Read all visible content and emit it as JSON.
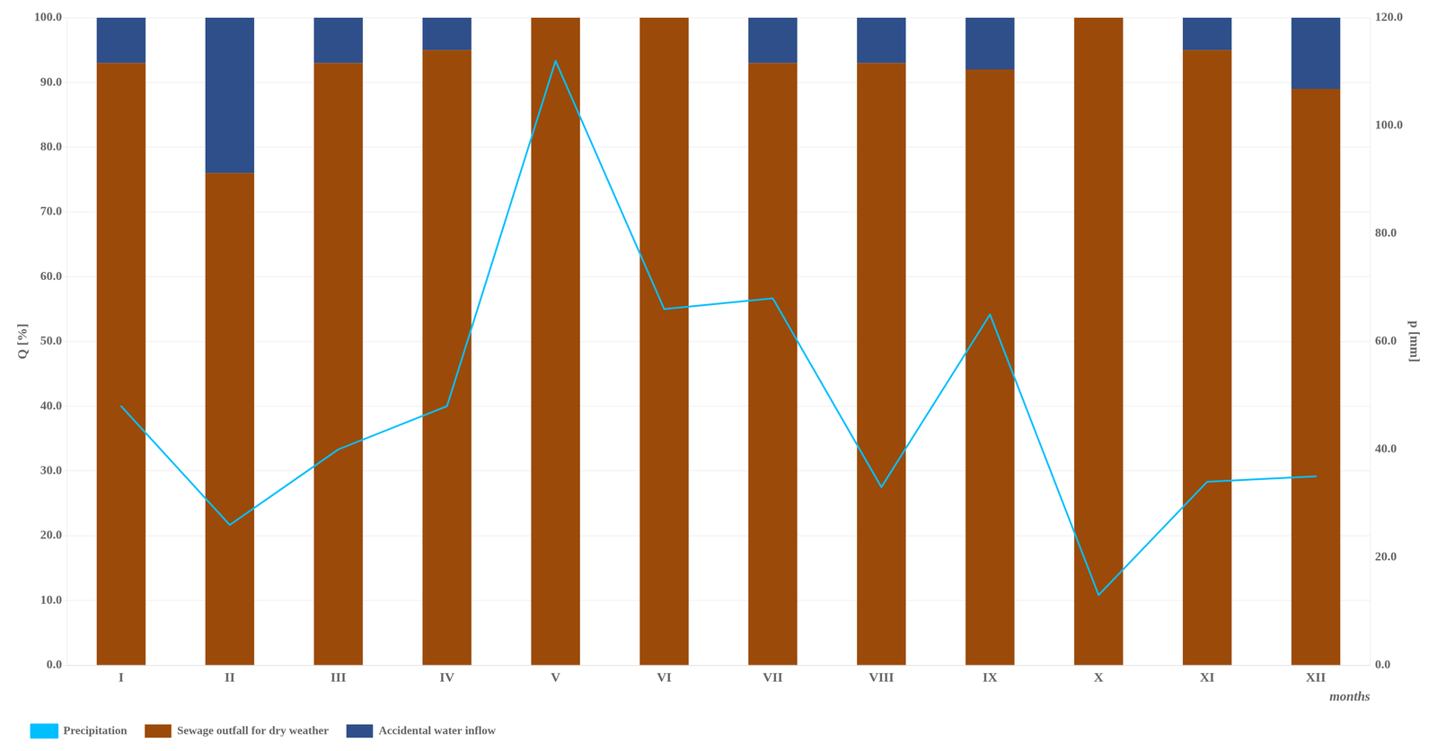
{
  "chart_data": {
    "type": "bar",
    "categories": [
      "I",
      "II",
      "III",
      "IV",
      "V",
      "VI",
      "VII",
      "VIII",
      "IX",
      "X",
      "XI",
      "XII"
    ],
    "series": [
      {
        "name": "Sewage outfall for dry weather",
        "type": "bar",
        "color": "#9B4A0A",
        "values": [
          93,
          76,
          93,
          95,
          100,
          100,
          93,
          93,
          92,
          100,
          95,
          89
        ]
      },
      {
        "name": "Accidental water inflow",
        "type": "bar",
        "color": "#2E4F8A",
        "values": [
          7,
          24,
          7,
          5,
          0,
          0,
          7,
          7,
          8,
          0,
          5,
          11
        ]
      },
      {
        "name": "Precipitation",
        "type": "line",
        "color": "#00BFFF",
        "axis": "y2",
        "values": [
          48,
          26,
          40,
          48,
          112,
          66,
          68,
          33,
          65,
          13,
          34,
          35
        ]
      }
    ],
    "stacked": true,
    "xlabel": "months",
    "ylabel": "Q [%]",
    "y2label": "p [mm]",
    "ylim": [
      0,
      100
    ],
    "yticks": [
      {
        "value": 0,
        "label": "0.0"
      },
      {
        "value": 10,
        "label": "10.0"
      },
      {
        "value": 20,
        "label": "20.0"
      },
      {
        "value": 30,
        "label": "30.0"
      },
      {
        "value": 40,
        "label": "40.0"
      },
      {
        "value": 50,
        "label": "50.0"
      },
      {
        "value": 60,
        "label": "60.0"
      },
      {
        "value": 70,
        "label": "70.0"
      },
      {
        "value": 80,
        "label": "80.0"
      },
      {
        "value": 90,
        "label": "90.0"
      },
      {
        "value": 100,
        "label": "100.0"
      }
    ],
    "y2lim": [
      0,
      120
    ],
    "y2ticks": [
      {
        "value": 0,
        "label": "0.0"
      },
      {
        "value": 20,
        "label": "20.0"
      },
      {
        "value": 40,
        "label": "40.0"
      },
      {
        "value": 60,
        "label": "60.0"
      },
      {
        "value": 80,
        "label": "80.0"
      },
      {
        "value": 100,
        "label": "100.0"
      },
      {
        "value": 120,
        "label": "120.0"
      }
    ],
    "grid": true,
    "legend": "bottom"
  }
}
